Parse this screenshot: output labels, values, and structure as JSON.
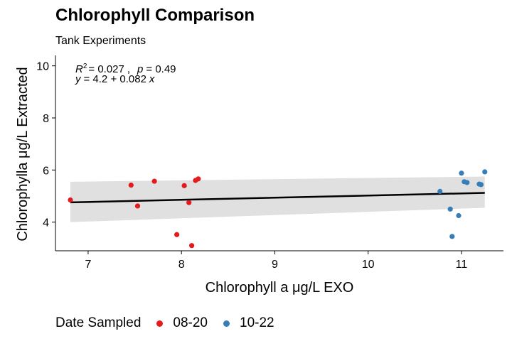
{
  "chart_data": {
    "type": "scatter",
    "title": "Chlorophyll Comparison",
    "subtitle": "Tank Experiments",
    "xlabel": "Chlorophyll a μg/L EXO",
    "ylabel": "Chlorophylla μg/L Extracted",
    "xlim": [
      6.65,
      11.45
    ],
    "ylim": [
      2.9,
      10.4
    ],
    "x_ticks": [
      7,
      8,
      9,
      10,
      11
    ],
    "y_ticks": [
      4,
      6,
      8,
      10
    ],
    "grid": false,
    "legend_position": "bottom",
    "legend_title": "Date Sampled",
    "series": [
      {
        "name": "08-20",
        "color": "#e41a1c",
        "points": [
          [
            6.81,
            4.85
          ],
          [
            7.46,
            5.42
          ],
          [
            7.53,
            4.62
          ],
          [
            7.71,
            5.57
          ],
          [
            7.95,
            3.52
          ],
          [
            8.03,
            5.4
          ],
          [
            8.08,
            4.75
          ],
          [
            8.11,
            3.1
          ],
          [
            8.15,
            5.6
          ],
          [
            8.18,
            5.66
          ]
        ]
      },
      {
        "name": "10-22",
        "color": "#377eb8",
        "points": [
          [
            10.77,
            5.18
          ],
          [
            10.88,
            4.5
          ],
          [
            10.9,
            3.45
          ],
          [
            10.97,
            4.25
          ],
          [
            11.0,
            5.88
          ],
          [
            11.03,
            5.55
          ],
          [
            11.06,
            5.52
          ],
          [
            11.19,
            5.46
          ],
          [
            11.21,
            5.44
          ],
          [
            11.25,
            5.93
          ]
        ]
      }
    ],
    "regression": {
      "intercept": 4.2,
      "slope": 0.082,
      "x_range": [
        6.81,
        11.25
      ],
      "band_lower": [
        4.0,
        4.55
      ],
      "band_upper": [
        5.55,
        5.75
      ],
      "color": "#000000",
      "band_color": "#e0e0e0"
    },
    "annotations": {
      "r2_label": "R",
      "r2_sup": "2",
      "r2_value": "= 0.027",
      "p_label": "p",
      "p_value": "= 0.49",
      "eq_y": "y",
      "eq_rest": "= 4.2 + 0.082",
      "eq_x": "x"
    }
  }
}
